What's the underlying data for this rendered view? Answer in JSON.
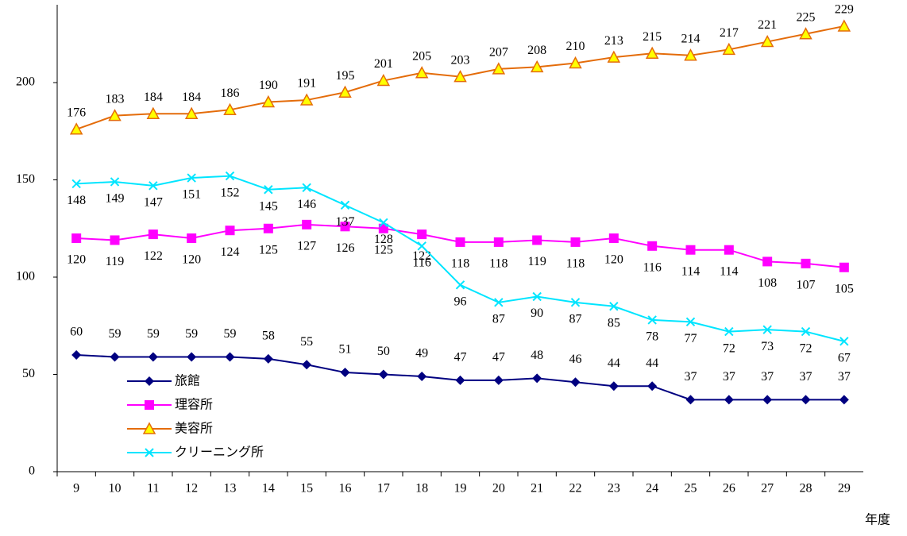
{
  "chart_data": {
    "type": "line",
    "xlabel": "年度",
    "categories": [
      "9",
      "10",
      "11",
      "12",
      "13",
      "14",
      "15",
      "16",
      "17",
      "18",
      "19",
      "20",
      "21",
      "22",
      "23",
      "24",
      "25",
      "26",
      "27",
      "28",
      "29"
    ],
    "ylim": [
      0,
      240
    ],
    "yticks": [
      0,
      50,
      100,
      150,
      200
    ],
    "grid": false,
    "legend": "lower left",
    "series": [
      {
        "name": "旅館",
        "color": "#000080",
        "marker": "diamond",
        "values": [
          60,
          59,
          59,
          59,
          59,
          58,
          55,
          51,
          50,
          49,
          47,
          47,
          48,
          46,
          44,
          44,
          37,
          37,
          37,
          37,
          37
        ]
      },
      {
        "name": "理容所",
        "color": "#ff00ff",
        "marker": "square",
        "values": [
          120,
          119,
          122,
          120,
          124,
          125,
          127,
          126,
          125,
          122,
          118,
          118,
          119,
          118,
          120,
          116,
          114,
          114,
          108,
          107,
          105
        ]
      },
      {
        "name": "美容所",
        "color": "#e46c0a",
        "marker": "triangle",
        "values": [
          176,
          183,
          184,
          184,
          186,
          190,
          191,
          195,
          201,
          205,
          203,
          207,
          208,
          210,
          213,
          215,
          214,
          217,
          221,
          225,
          229
        ]
      },
      {
        "name": "クリーニング所",
        "color": "#00e5ff",
        "marker": "x",
        "values": [
          148,
          149,
          147,
          151,
          152,
          145,
          146,
          137,
          128,
          116,
          96,
          87,
          90,
          87,
          85,
          78,
          77,
          72,
          73,
          72,
          67
        ]
      }
    ]
  }
}
